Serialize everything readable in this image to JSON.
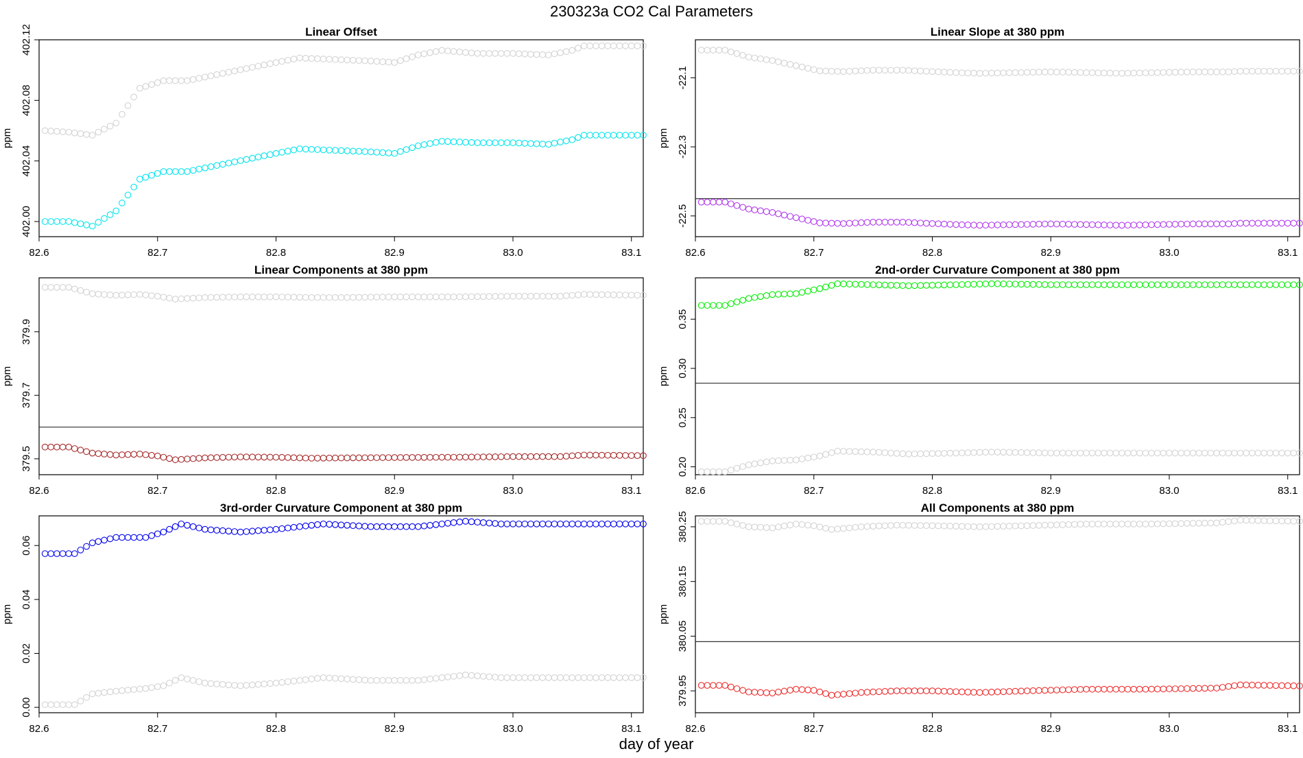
{
  "page": {
    "title": "230323a   CO2 Cal Parameters",
    "xlabel": "day of year"
  },
  "chart_data": [
    {
      "type": "scatter",
      "title": "Linear Offset",
      "ylabel": "ppm",
      "xlim": [
        82.6,
        83.11
      ],
      "ylim": [
        401.99,
        402.12
      ],
      "xticks": [
        "82.6",
        "82.7",
        "82.8",
        "82.9",
        "83.0",
        "83.1"
      ],
      "yticks": [
        "402.00",
        "402.04",
        "402.08",
        "402.12"
      ],
      "hline": null,
      "series": [
        {
          "color": "#d3d3d3",
          "points": [
            [
              82.605,
              402.06
            ],
            [
              82.625,
              402.059
            ],
            [
              82.645,
              402.057
            ],
            [
              82.665,
              402.065
            ],
            [
              82.685,
              402.088
            ],
            [
              82.705,
              402.093
            ],
            [
              82.725,
              402.093
            ],
            [
              82.75,
              402.097
            ],
            [
              82.775,
              402.101
            ],
            [
              82.8,
              402.105
            ],
            [
              82.82,
              402.108
            ],
            [
              82.85,
              402.107
            ],
            [
              82.88,
              402.106
            ],
            [
              82.9,
              402.105
            ],
            [
              82.92,
              402.11
            ],
            [
              82.94,
              402.113
            ],
            [
              82.97,
              402.111
            ],
            [
              83.0,
              402.111
            ],
            [
              83.03,
              402.11
            ],
            [
              83.05,
              402.113
            ],
            [
              83.06,
              402.116
            ],
            [
              83.11,
              402.116
            ]
          ]
        },
        {
          "color": "#00e5ee",
          "points": [
            [
              82.605,
              402.0
            ],
            [
              82.625,
              402.0
            ],
            [
              82.645,
              401.997
            ],
            [
              82.665,
              402.007
            ],
            [
              82.685,
              402.028
            ],
            [
              82.705,
              402.033
            ],
            [
              82.725,
              402.033
            ],
            [
              82.75,
              402.037
            ],
            [
              82.775,
              402.041
            ],
            [
              82.8,
              402.045
            ],
            [
              82.82,
              402.048
            ],
            [
              82.85,
              402.047
            ],
            [
              82.88,
              402.046
            ],
            [
              82.9,
              402.045
            ],
            [
              82.92,
              402.05
            ],
            [
              82.94,
              402.053
            ],
            [
              82.97,
              402.052
            ],
            [
              83.0,
              402.052
            ],
            [
              83.03,
              402.051
            ],
            [
              83.05,
              402.054
            ],
            [
              83.06,
              402.057
            ],
            [
              83.11,
              402.057
            ]
          ]
        }
      ]
    },
    {
      "type": "scatter",
      "title": "Linear Slope at 380 ppm",
      "ylabel": "ppm",
      "xlim": [
        82.6,
        83.11
      ],
      "ylim": [
        -22.56,
        -21.99
      ],
      "xticks": [
        "82.6",
        "82.7",
        "82.8",
        "82.9",
        "83.0",
        "83.1"
      ],
      "yticks": [
        "-22.5",
        "-22.3",
        "-22.1"
      ],
      "hline": -22.45,
      "series": [
        {
          "color": "#d3d3d3",
          "points": [
            [
              82.605,
              -22.02
            ],
            [
              82.625,
              -22.02
            ],
            [
              82.645,
              -22.04
            ],
            [
              82.665,
              -22.05
            ],
            [
              82.685,
              -22.065
            ],
            [
              82.705,
              -22.08
            ],
            [
              82.725,
              -22.082
            ],
            [
              82.75,
              -22.078
            ],
            [
              82.775,
              -22.078
            ],
            [
              82.8,
              -22.082
            ],
            [
              82.82,
              -22.085
            ],
            [
              82.84,
              -22.087
            ],
            [
              82.87,
              -22.085
            ],
            [
              82.9,
              -22.083
            ],
            [
              82.93,
              -22.085
            ],
            [
              82.96,
              -22.087
            ],
            [
              82.99,
              -22.085
            ],
            [
              83.02,
              -22.083
            ],
            [
              83.05,
              -22.083
            ],
            [
              83.06,
              -22.081
            ],
            [
              83.11,
              -22.081
            ]
          ]
        },
        {
          "color": "#b23aee",
          "points": [
            [
              82.605,
              -22.46
            ],
            [
              82.625,
              -22.46
            ],
            [
              82.645,
              -22.48
            ],
            [
              82.665,
              -22.49
            ],
            [
              82.685,
              -22.505
            ],
            [
              82.705,
              -22.52
            ],
            [
              82.725,
              -22.522
            ],
            [
              82.75,
              -22.518
            ],
            [
              82.775,
              -22.518
            ],
            [
              82.8,
              -22.522
            ],
            [
              82.82,
              -22.525
            ],
            [
              82.84,
              -22.527
            ],
            [
              82.87,
              -22.525
            ],
            [
              82.9,
              -22.523
            ],
            [
              82.93,
              -22.525
            ],
            [
              82.96,
              -22.527
            ],
            [
              82.99,
              -22.525
            ],
            [
              83.02,
              -22.523
            ],
            [
              83.05,
              -22.523
            ],
            [
              83.06,
              -22.521
            ],
            [
              83.11,
              -22.521
            ]
          ]
        }
      ]
    },
    {
      "type": "scatter",
      "title": "Linear Components at 380 ppm",
      "ylabel": "ppm",
      "xlim": [
        82.6,
        83.11
      ],
      "ylim": [
        379.45,
        380.07
      ],
      "xticks": [
        "82.6",
        "82.7",
        "82.8",
        "82.9",
        "83.0",
        "83.1"
      ],
      "yticks": [
        "379.5",
        "379.7",
        "379.9"
      ],
      "hline": 379.6,
      "series": [
        {
          "color": "#d3d3d3",
          "points": [
            [
              82.605,
              380.04
            ],
            [
              82.625,
              380.04
            ],
            [
              82.645,
              380.02
            ],
            [
              82.665,
              380.015
            ],
            [
              82.685,
              380.018
            ],
            [
              82.7,
              380.012
            ],
            [
              82.715,
              380.003
            ],
            [
              82.74,
              380.008
            ],
            [
              82.77,
              380.01
            ],
            [
              82.8,
              380.01
            ],
            [
              82.83,
              380.008
            ],
            [
              82.86,
              380.008
            ],
            [
              82.9,
              380.01
            ],
            [
              82.95,
              380.01
            ],
            [
              83.0,
              380.012
            ],
            [
              83.04,
              380.012
            ],
            [
              83.06,
              380.018
            ],
            [
              83.11,
              380.015
            ]
          ]
        },
        {
          "color": "#a52a2a",
          "points": [
            [
              82.605,
              379.537
            ],
            [
              82.625,
              379.537
            ],
            [
              82.645,
              379.518
            ],
            [
              82.665,
              379.512
            ],
            [
              82.685,
              379.515
            ],
            [
              82.7,
              379.509
            ],
            [
              82.715,
              379.497
            ],
            [
              82.74,
              379.503
            ],
            [
              82.77,
              379.506
            ],
            [
              82.8,
              379.505
            ],
            [
              82.83,
              379.502
            ],
            [
              82.86,
              379.503
            ],
            [
              82.9,
              379.504
            ],
            [
              82.95,
              379.505
            ],
            [
              83.0,
              379.507
            ],
            [
              83.04,
              379.507
            ],
            [
              83.06,
              379.512
            ],
            [
              83.11,
              379.51
            ]
          ]
        }
      ]
    },
    {
      "type": "scatter",
      "title": "2nd-order Curvature Component at 380 ppm",
      "ylabel": "ppm",
      "xlim": [
        82.6,
        83.11
      ],
      "ylim": [
        0.192,
        0.392
      ],
      "xticks": [
        "82.6",
        "82.7",
        "82.8",
        "82.9",
        "83.0",
        "83.1"
      ],
      "yticks": [
        "0.20",
        "0.25",
        "0.30",
        "0.35"
      ],
      "hline": 0.285,
      "series": [
        {
          "color": "#d3d3d3",
          "points": [
            [
              82.605,
              0.195
            ],
            [
              82.625,
              0.195
            ],
            [
              82.645,
              0.202
            ],
            [
              82.665,
              0.206
            ],
            [
              82.685,
              0.207
            ],
            [
              82.705,
              0.211
            ],
            [
              82.72,
              0.216
            ],
            [
              82.75,
              0.215
            ],
            [
              82.78,
              0.213
            ],
            [
              82.82,
              0.214
            ],
            [
              82.85,
              0.215
            ],
            [
              82.9,
              0.214
            ],
            [
              82.95,
              0.214
            ],
            [
              83.0,
              0.214
            ],
            [
              83.05,
              0.214
            ],
            [
              83.11,
              0.214
            ]
          ]
        },
        {
          "color": "#00ee00",
          "points": [
            [
              82.605,
              0.364
            ],
            [
              82.625,
              0.364
            ],
            [
              82.645,
              0.371
            ],
            [
              82.665,
              0.375
            ],
            [
              82.685,
              0.376
            ],
            [
              82.705,
              0.381
            ],
            [
              82.72,
              0.386
            ],
            [
              82.75,
              0.385
            ],
            [
              82.78,
              0.384
            ],
            [
              82.82,
              0.385
            ],
            [
              82.85,
              0.386
            ],
            [
              82.9,
              0.385
            ],
            [
              82.95,
              0.385
            ],
            [
              83.0,
              0.385
            ],
            [
              83.05,
              0.385
            ],
            [
              83.11,
              0.385
            ]
          ]
        }
      ]
    },
    {
      "type": "scatter",
      "title": "3rd-order Curvature Component at 380 ppm",
      "ylabel": "ppm",
      "xlim": [
        82.6,
        83.11
      ],
      "ylim": [
        -0.002,
        0.071
      ],
      "xticks": [
        "82.6",
        "82.7",
        "82.8",
        "82.9",
        "83.0",
        "83.1"
      ],
      "yticks": [
        "0.00",
        "0.02",
        "0.04",
        "0.06"
      ],
      "hline": null,
      "series": [
        {
          "color": "#d3d3d3",
          "points": [
            [
              82.605,
              0.001
            ],
            [
              82.63,
              0.001
            ],
            [
              82.645,
              0.005
            ],
            [
              82.665,
              0.006
            ],
            [
              82.69,
              0.007
            ],
            [
              82.705,
              0.008
            ],
            [
              82.72,
              0.011
            ],
            [
              82.74,
              0.009
            ],
            [
              82.77,
              0.008
            ],
            [
              82.8,
              0.009
            ],
            [
              82.84,
              0.011
            ],
            [
              82.88,
              0.01
            ],
            [
              82.92,
              0.01
            ],
            [
              82.96,
              0.012
            ],
            [
              82.99,
              0.011
            ],
            [
              83.03,
              0.011
            ],
            [
              83.07,
              0.011
            ],
            [
              83.11,
              0.011
            ]
          ]
        },
        {
          "color": "#0000ee",
          "points": [
            [
              82.605,
              0.057
            ],
            [
              82.63,
              0.057
            ],
            [
              82.645,
              0.061
            ],
            [
              82.665,
              0.063
            ],
            [
              82.69,
              0.063
            ],
            [
              82.705,
              0.065
            ],
            [
              82.72,
              0.068
            ],
            [
              82.74,
              0.066
            ],
            [
              82.77,
              0.065
            ],
            [
              82.8,
              0.066
            ],
            [
              82.84,
              0.068
            ],
            [
              82.88,
              0.067
            ],
            [
              82.92,
              0.067
            ],
            [
              82.96,
              0.069
            ],
            [
              82.99,
              0.068
            ],
            [
              83.03,
              0.068
            ],
            [
              83.07,
              0.068
            ],
            [
              83.11,
              0.068
            ]
          ]
        }
      ]
    },
    {
      "type": "scatter",
      "title": "All Components at 380 ppm",
      "ylabel": "ppm",
      "xlim": [
        82.6,
        83.11
      ],
      "ylim": [
        379.91,
        380.27
      ],
      "xticks": [
        "82.6",
        "82.7",
        "82.8",
        "82.9",
        "83.0",
        "83.1"
      ],
      "yticks": [
        "379.95",
        "380.05",
        "380.15",
        "380.25"
      ],
      "hline": 380.04,
      "series": [
        {
          "color": "#d3d3d3",
          "points": [
            [
              82.605,
              380.26
            ],
            [
              82.625,
              380.26
            ],
            [
              82.645,
              380.25
            ],
            [
              82.665,
              380.248
            ],
            [
              82.685,
              380.255
            ],
            [
              82.7,
              380.252
            ],
            [
              82.715,
              380.245
            ],
            [
              82.74,
              380.25
            ],
            [
              82.77,
              380.253
            ],
            [
              82.8,
              380.252
            ],
            [
              82.84,
              380.25
            ],
            [
              82.88,
              380.252
            ],
            [
              82.93,
              380.255
            ],
            [
              82.98,
              380.255
            ],
            [
              83.04,
              380.257
            ],
            [
              83.06,
              380.262
            ],
            [
              83.11,
              380.26
            ]
          ]
        },
        {
          "color": "#ee2c2c",
          "points": [
            [
              82.605,
              379.96
            ],
            [
              82.625,
              379.96
            ],
            [
              82.645,
              379.948
            ],
            [
              82.665,
              379.946
            ],
            [
              82.685,
              379.953
            ],
            [
              82.7,
              379.951
            ],
            [
              82.715,
              379.942
            ],
            [
              82.74,
              379.947
            ],
            [
              82.77,
              379.95
            ],
            [
              82.8,
              379.95
            ],
            [
              82.84,
              379.947
            ],
            [
              82.88,
              379.95
            ],
            [
              82.93,
              379.953
            ],
            [
              82.98,
              379.953
            ],
            [
              83.04,
              379.955
            ],
            [
              83.06,
              379.961
            ],
            [
              83.11,
              379.959
            ]
          ]
        }
      ]
    }
  ]
}
